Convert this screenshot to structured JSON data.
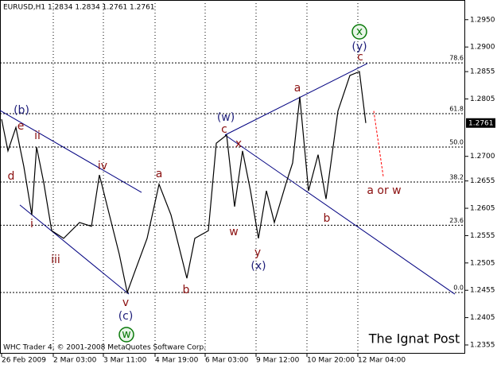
{
  "chart_data": {
    "type": "line",
    "title": "EURUSD,H1  1.2834 1.2834 1.2761 1.2761",
    "footer": "WHC Trader 4, © 2001-2008 MetaQuotes Software Corp.",
    "watermark": "The Ignat Post",
    "x": [
      1,
      5,
      10,
      15,
      20,
      23,
      27.5,
      32.5,
      40,
      50,
      57.5,
      62.5,
      67.5,
      75,
      80,
      85,
      92.5,
      100,
      107.5,
      112.5,
      117.5,
      122.5,
      131,
      136,
      142.5,
      147.5,
      152.5,
      157.5,
      162.5,
      167.5,
      172.5,
      180,
      184,
      188.5,
      194,
      200,
      205,
      212.5,
      220,
      226,
      230
    ],
    "series": [
      {
        "name": "EURUSD",
        "color": "#000000",
        "values": [
          1.2768,
          1.271,
          1.2753,
          1.2681,
          1.2593,
          1.2717,
          1.2652,
          1.2564,
          1.255,
          1.2579,
          1.2572,
          1.2666,
          1.2608,
          1.2521,
          1.2451,
          1.2491,
          1.255,
          1.2649,
          1.2593,
          1.2535,
          1.2477,
          1.255,
          1.2564,
          1.2724,
          1.2739,
          1.2608,
          1.271,
          1.2637,
          1.255,
          1.2637,
          1.2579,
          1.2652,
          1.2688,
          1.2809,
          1.2637,
          1.2703,
          1.2622,
          1.2783,
          1.2848,
          1.2855,
          1.2761
        ]
      }
    ],
    "last_price": 1.2761,
    "xlim": [
      0,
      292.5
    ],
    "ylim": [
      1.2339,
      1.2986
    ],
    "xticks": [
      {
        "value": 1,
        "label": "26 Feb 2009"
      },
      {
        "value": 33.5,
        "label": "2 Mar 03:00"
      },
      {
        "value": 65,
        "label": "3 Mar 11:00"
      },
      {
        "value": 97.5,
        "label": "4 Mar 19:00"
      },
      {
        "value": 129,
        "label": "6 Mar 03:00"
      },
      {
        "value": 161,
        "label": "9 Mar 12:00"
      },
      {
        "value": 193,
        "label": "10 Mar 20:00"
      },
      {
        "value": 225,
        "label": "12 Mar 04:00"
      }
    ],
    "yticks": [
      {
        "value": 1.295,
        "label": "1.2950"
      },
      {
        "value": 1.29,
        "label": "1.2900"
      },
      1.2855,
      1.2805,
      {
        "value": 1.27,
        "label": "1.2700"
      },
      1.2655,
      1.2605,
      1.2555,
      1.2505,
      1.2455,
      1.2405,
      1.2355
    ],
    "fib_levels": [
      {
        "label": "78.6",
        "price": 1.2871
      },
      {
        "label": "61.8",
        "price": 1.2778
      },
      {
        "label": "50.0",
        "price": 1.2717
      },
      {
        "label": "38.2",
        "price": 1.2653
      },
      {
        "label": "23.6",
        "price": 1.2574
      },
      {
        "label": "0.0",
        "price": 1.2451
      }
    ],
    "trendlines": [
      {
        "x": [
          0,
          89
        ],
        "values": [
          1.2784,
          1.2634
        ],
        "color": "#000080"
      },
      {
        "x": [
          12.5,
          81
        ],
        "values": [
          1.2611,
          1.2448
        ],
        "color": "#000080"
      },
      {
        "x": [
          141.5,
          286
        ],
        "values": [
          1.2739,
          1.2448
        ],
        "color": "#000080"
      },
      {
        "x": [
          141.5,
          231
        ],
        "values": [
          1.2739,
          1.287
        ],
        "color": "#000080"
      },
      {
        "x": [
          235,
          241
        ],
        "values": [
          1.2783,
          1.2663
        ],
        "color": "#ff0000",
        "dashed": true
      }
    ],
    "annotations": [
      {
        "text": "(b)",
        "color": "#1f1f7a"
      },
      {
        "text": "e",
        "color": "#8b1010"
      },
      {
        "text": "d",
        "color": "#8b1010"
      },
      {
        "text": "ii",
        "color": "#8b1010"
      },
      {
        "text": "i",
        "color": "#8b1010"
      },
      {
        "text": "iii",
        "color": "#8b1010"
      },
      {
        "text": "iv",
        "color": "#8b1010"
      },
      {
        "text": "v",
        "color": "#8b1010"
      },
      {
        "text": "(c)",
        "color": "#1f1f7a"
      },
      {
        "text": "w",
        "color": "#0a7a0a",
        "circled": true
      },
      {
        "text": "a",
        "color": "#8b1010"
      },
      {
        "text": "b",
        "color": "#8b1010"
      },
      {
        "text": "(w)",
        "color": "#1f1f7a"
      },
      {
        "text": "c",
        "color": "#8b1010"
      },
      {
        "text": "x",
        "color": "#8b1010"
      },
      {
        "text": "w",
        "color": "#8b1010"
      },
      {
        "text": "y",
        "color": "#8b1010"
      },
      {
        "text": "(x)",
        "color": "#1f1f7a"
      },
      {
        "text": "a",
        "color": "#8b1010"
      },
      {
        "text": "b",
        "color": "#8b1010"
      },
      {
        "text": "c",
        "color": "#8b1010"
      },
      {
        "text": "(y)",
        "color": "#1f1f7a"
      },
      {
        "text": "x",
        "color": "#0a7a0a",
        "circled": true
      },
      {
        "text": "a or w",
        "color": "#8b1010"
      }
    ]
  }
}
